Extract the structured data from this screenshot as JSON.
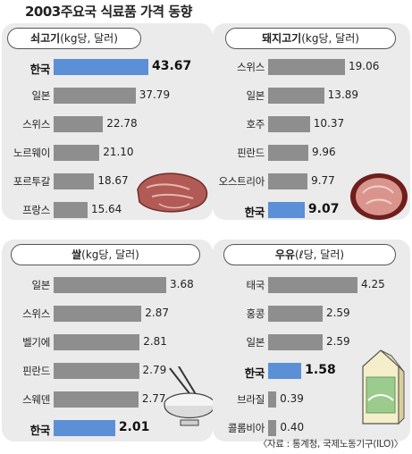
{
  "title": "2003주요국 식료품 가격 동향",
  "source": "〈자료 : 통계청, 국제노동기구(ILO)〉",
  "colors": {
    "bar": "#8e8e8e",
    "highlight": "#5b8fd6",
    "panel": "#ebebeb"
  },
  "chart_data": [
    {
      "type": "bar",
      "title_main": "쇠고기",
      "title_unit": "(kg당, 달러)",
      "categories": [
        "한국",
        "일본",
        "스위스",
        "노르웨이",
        "포르투갈",
        "프랑스"
      ],
      "values": [
        43.67,
        37.79,
        22.78,
        21.1,
        18.67,
        15.64
      ],
      "labels": [
        "43.67",
        "37.79",
        "22.78",
        "21.10",
        "18.67",
        "15.64"
      ],
      "highlight": "한국",
      "xlim": [
        0,
        43.67
      ]
    },
    {
      "type": "bar",
      "title_main": "돼지고기",
      "title_unit": "(kg당, 달러)",
      "categories": [
        "스위스",
        "일본",
        "호주",
        "핀란드",
        "오스트리아",
        "한국"
      ],
      "values": [
        19.06,
        13.89,
        10.37,
        9.96,
        9.77,
        9.07
      ],
      "labels": [
        "19.06",
        "13.89",
        "10.37",
        "9.96",
        "9.77",
        "9.07"
      ],
      "highlight": "한국",
      "xlim": [
        0,
        19.06
      ]
    },
    {
      "type": "bar",
      "title_main": "쌀",
      "title_unit": "(kg당, 달러)",
      "categories": [
        "일본",
        "스위스",
        "벨기에",
        "핀란드",
        "스웨덴",
        "한국"
      ],
      "values": [
        3.68,
        2.87,
        2.81,
        2.79,
        2.77,
        2.01
      ],
      "labels": [
        "3.68",
        "2.87",
        "2.81",
        "2.79",
        "2.77",
        "2.01"
      ],
      "highlight": "한국",
      "xlim": [
        0,
        3.68
      ]
    },
    {
      "type": "bar",
      "title_main": "우유",
      "title_unit": "(ℓ당, 달러)",
      "categories": [
        "태국",
        "홍콩",
        "일본",
        "한국",
        "브라질",
        "콜롬비아"
      ],
      "values": [
        4.25,
        2.59,
        2.59,
        1.58,
        0.39,
        0.4
      ],
      "labels": [
        "4.25",
        "2.59",
        "2.59",
        "1.58",
        "0.39",
        "0.40"
      ],
      "highlight": "한국",
      "xlim": [
        0,
        4.25
      ]
    }
  ]
}
